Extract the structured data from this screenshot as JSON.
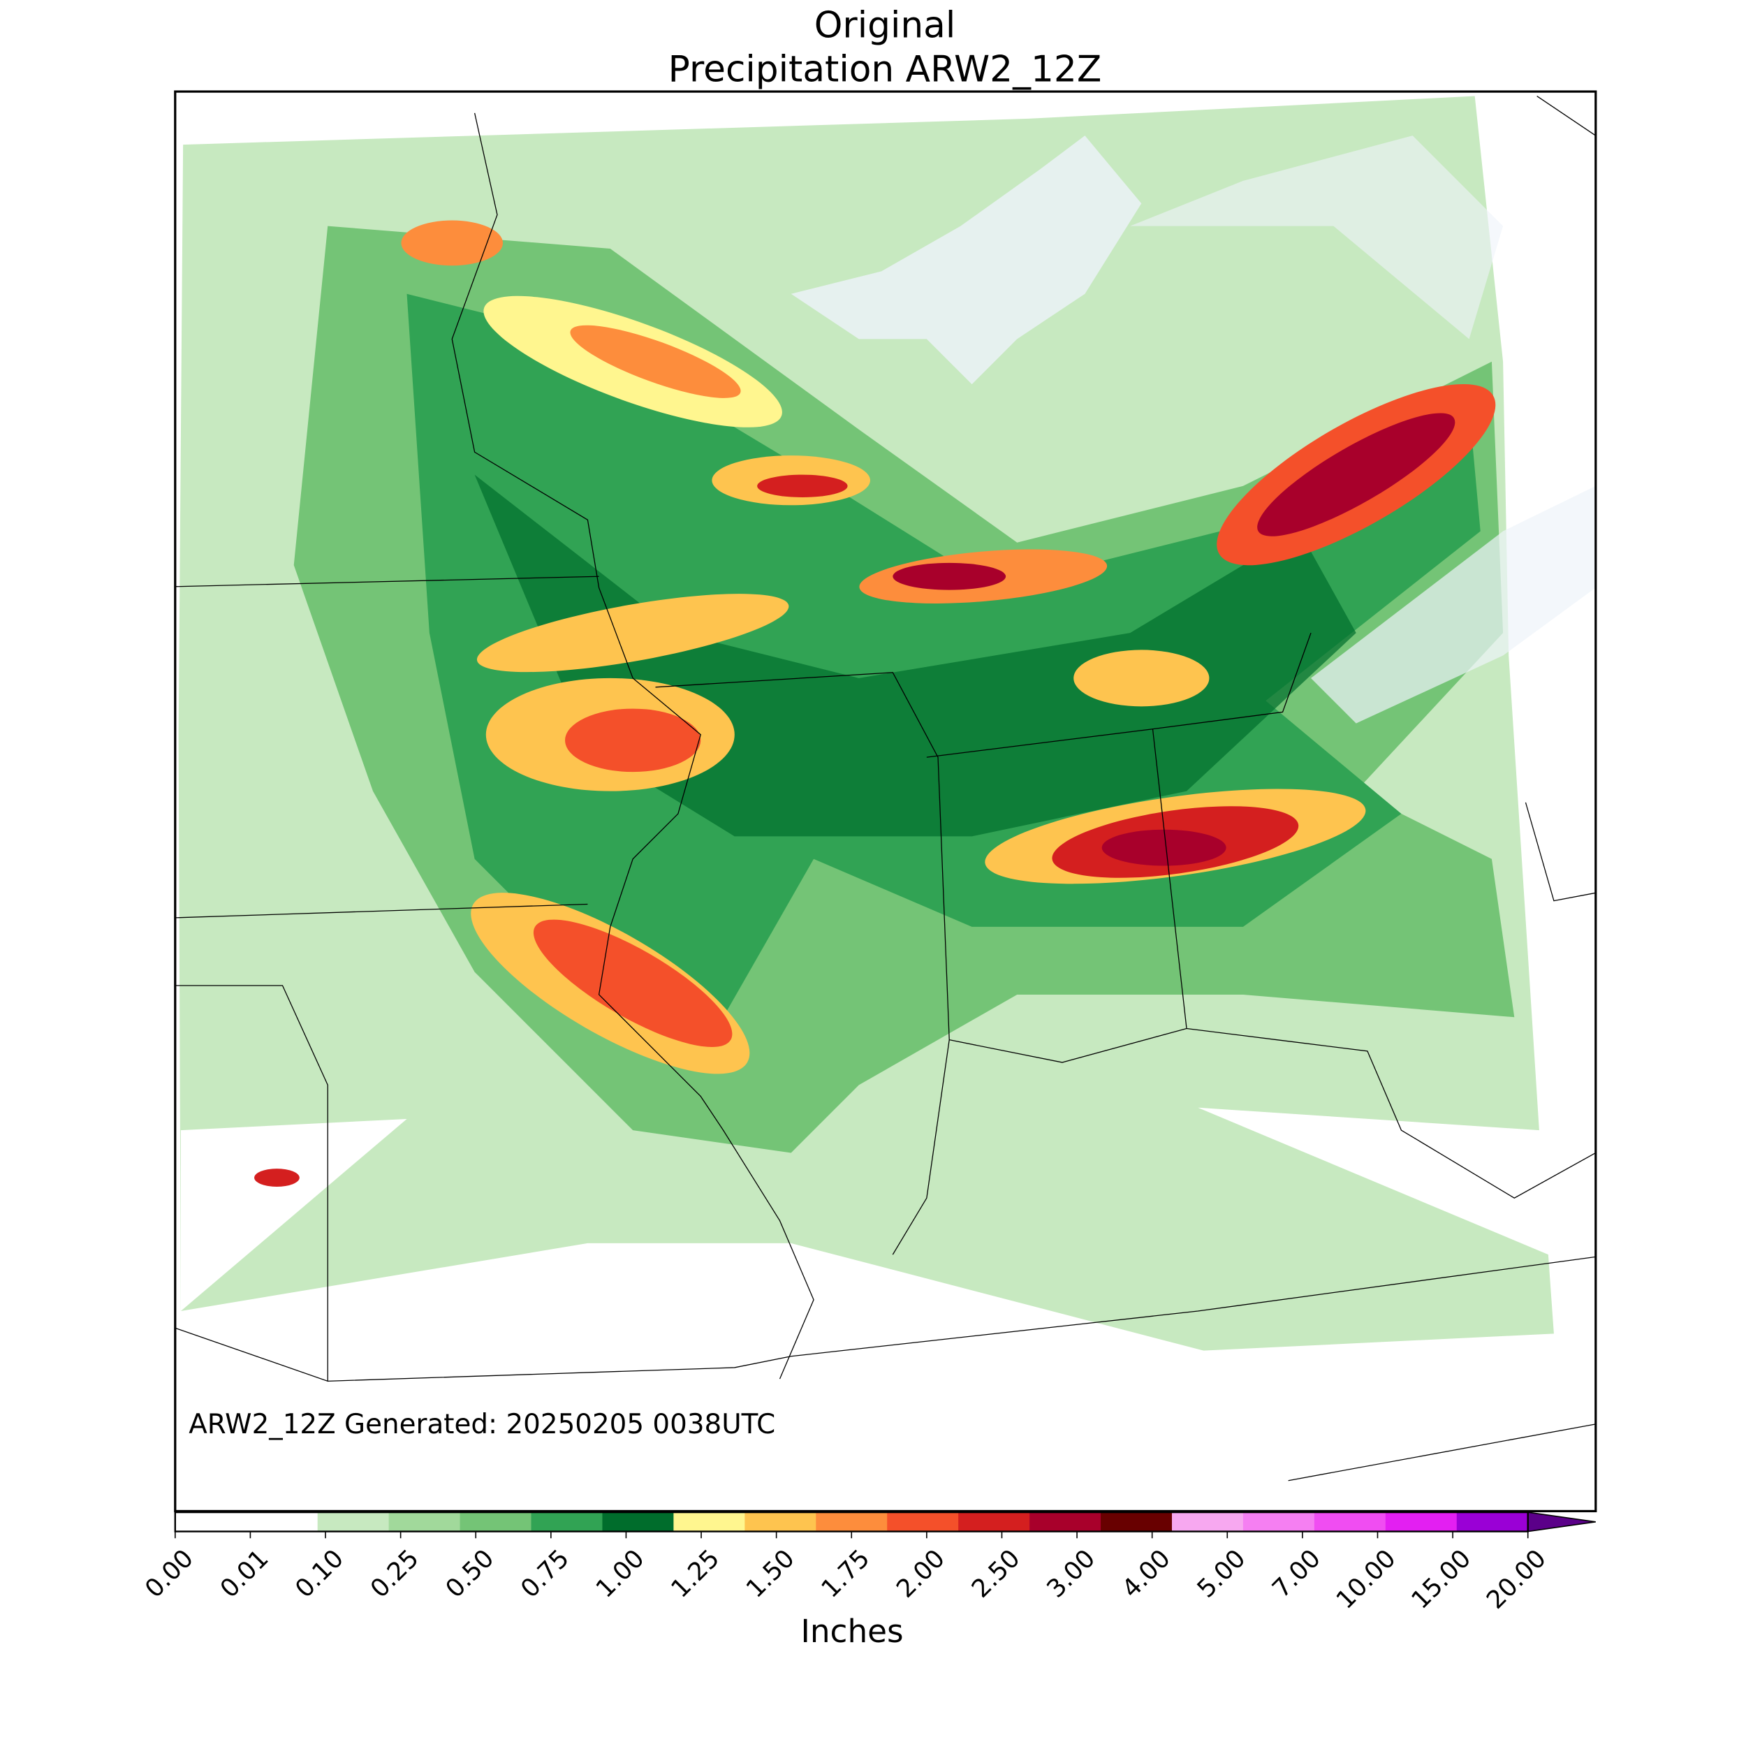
{
  "title": [
    "Original",
    "Precipitation ARW2_12Z"
  ],
  "annotation": "ARW2_12Z Generated: 20250205 0038UTC",
  "colorbar": {
    "label": "Inches",
    "ticks": [
      {
        "value": 0,
        "label": "0.00"
      },
      {
        "value": 0.01,
        "label": "0.01"
      },
      {
        "value": 0.1,
        "label": "0.10"
      },
      {
        "value": 0.25,
        "label": "0.25"
      },
      {
        "value": 0.5,
        "label": "0.50"
      },
      {
        "value": 0.75,
        "label": "0.75"
      },
      {
        "value": 1,
        "label": "1.00"
      },
      {
        "value": 1.25,
        "label": "1.25"
      },
      {
        "value": 1.5,
        "label": "1.50"
      },
      {
        "value": 1.75,
        "label": "1.75"
      },
      {
        "value": 2,
        "label": "2.00"
      },
      {
        "value": 2.5,
        "label": "2.50"
      },
      {
        "value": 3,
        "label": "3.00"
      },
      {
        "value": 4,
        "label": "4.00"
      },
      {
        "value": 5,
        "label": "5.00"
      },
      {
        "value": 7,
        "label": "7.00"
      },
      {
        "value": 10,
        "label": "10.00"
      },
      {
        "value": 15,
        "label": "15.00"
      },
      {
        "value": 20,
        "label": "20.00"
      }
    ],
    "colors": [
      "#ffffff",
      "#c7e9c0",
      "#a1d99b",
      "#74c476",
      "#31a354",
      "#006d2c",
      "#fff68f",
      "#fec44f",
      "#fd8d3c",
      "#f4502a",
      "#d41f1f",
      "#a8002b",
      "#680000",
      "#f7a8f0",
      "#f57ff2",
      "#f04df2",
      "#e31ff2",
      "#9a00d6"
    ],
    "extend_color": "#5b0089"
  }
}
